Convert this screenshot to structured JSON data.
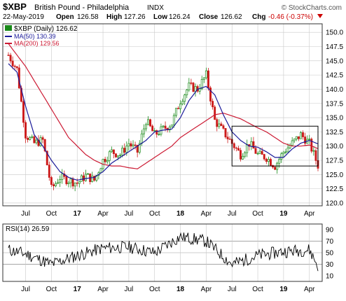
{
  "header": {
    "symbol": "$XBP",
    "name": "British Pound - Philadelphia",
    "exchange": "INDX",
    "date": "22-May-2019",
    "open_label": "Open",
    "open": "126.58",
    "high_label": "High",
    "high": "127.26",
    "low_label": "Low",
    "low": "126.24",
    "close_label": "Close",
    "close": "126.62",
    "chg_label": "Chg",
    "chg": "-0.46 (-0.37%)",
    "watermark": "© StockCharts.com"
  },
  "legend": {
    "price": "$XBP (Daily) 126.62",
    "ma50": "MA(50) 130.39",
    "ma200": "MA(200) 129.56"
  },
  "rsi_label": "RSI(14) 26.59",
  "colors": {
    "up": "#1a8a1a",
    "down": "#cc1a1a",
    "ma50": "#1a1a99",
    "ma200": "#cc1a33",
    "grid": "#c8c8c8",
    "frame": "#333333",
    "chg": "#cc0000",
    "rsi": "#000000"
  },
  "chart_data": [
    {
      "type": "candlestick",
      "ylim": [
        119.5,
        151.5
      ],
      "y_ticks": [
        120.0,
        122.5,
        125.0,
        127.5,
        130.0,
        132.5,
        135.0,
        137.5,
        140.0,
        142.5,
        145.0,
        147.5,
        150.0
      ],
      "x_ticks": [
        "Jul",
        "Oct",
        "17",
        "Apr",
        "Jul",
        "Oct",
        "18",
        "Apr",
        "Jul",
        "Oct",
        "19",
        "Apr"
      ],
      "x_range": [
        "2016-05",
        "2019-05"
      ],
      "series_close": {
        "x": [
          "2016-05",
          "2016-06",
          "2016-07",
          "2016-08",
          "2016-09",
          "2016-10",
          "2016-11",
          "2016-12",
          "2017-01",
          "2017-02",
          "2017-03",
          "2017-04",
          "2017-05",
          "2017-06",
          "2017-07",
          "2017-08",
          "2017-09",
          "2017-10",
          "2017-11",
          "2017-12",
          "2018-01",
          "2018-02",
          "2018-03",
          "2018-04",
          "2018-05",
          "2018-06",
          "2018-07",
          "2018-08",
          "2018-09",
          "2018-10",
          "2018-11",
          "2018-12",
          "2019-01",
          "2019-02",
          "2019-03",
          "2019-04",
          "2019-05"
        ],
        "values": [
          146.0,
          143.5,
          132.0,
          130.5,
          131.0,
          122.5,
          124.5,
          124.0,
          123.5,
          124.8,
          124.0,
          127.5,
          129.0,
          128.5,
          130.5,
          129.0,
          134.5,
          132.0,
          133.0,
          134.0,
          138.0,
          140.5,
          140.0,
          142.5,
          134.5,
          132.5,
          130.5,
          128.5,
          130.5,
          128.5,
          128.0,
          126.5,
          129.0,
          130.5,
          132.0,
          130.5,
          126.62
        ]
      },
      "ma50": [
        144.5,
        143.0,
        137.0,
        132.0,
        130.0,
        127.5,
        125.5,
        124.5,
        124.0,
        124.3,
        124.5,
        125.5,
        127.0,
        128.0,
        129.0,
        130.0,
        131.0,
        132.5,
        132.8,
        133.0,
        135.0,
        138.0,
        140.0,
        140.5,
        139.0,
        135.5,
        132.5,
        131.0,
        130.0,
        129.8,
        129.0,
        128.0,
        128.0,
        129.5,
        130.5,
        131.0,
        130.39
      ],
      "ma200": [
        148.0,
        146.0,
        144.0,
        141.5,
        139.0,
        136.5,
        134.0,
        131.5,
        130.0,
        128.5,
        127.5,
        126.8,
        126.5,
        126.5,
        126.2,
        126.0,
        127.0,
        128.0,
        129.0,
        130.0,
        131.5,
        132.5,
        133.5,
        134.5,
        135.5,
        135.8,
        135.3,
        134.8,
        134.0,
        133.2,
        132.5,
        131.5,
        130.5,
        130.0,
        130.0,
        130.2,
        129.56
      ],
      "annotations": [
        {
          "shape": "rectangle",
          "x": [
            "2018-07",
            "2019-05"
          ],
          "y": [
            126.5,
            133.5
          ]
        }
      ]
    },
    {
      "type": "line",
      "name": "RSI(14)",
      "ylim": [
        0,
        100
      ],
      "y_ticks": [
        10,
        30,
        50,
        70,
        90
      ],
      "reference_lines": [
        30,
        50,
        70
      ],
      "x": [
        "2016-05",
        "2016-07",
        "2016-10",
        "2017-01",
        "2017-04",
        "2017-07",
        "2017-10",
        "2018-01",
        "2018-04",
        "2018-07",
        "2018-10",
        "2019-01",
        "2019-04",
        "2019-05"
      ],
      "values": [
        55,
        48,
        30,
        45,
        58,
        60,
        50,
        78,
        70,
        30,
        45,
        52,
        55,
        26.59
      ]
    }
  ]
}
